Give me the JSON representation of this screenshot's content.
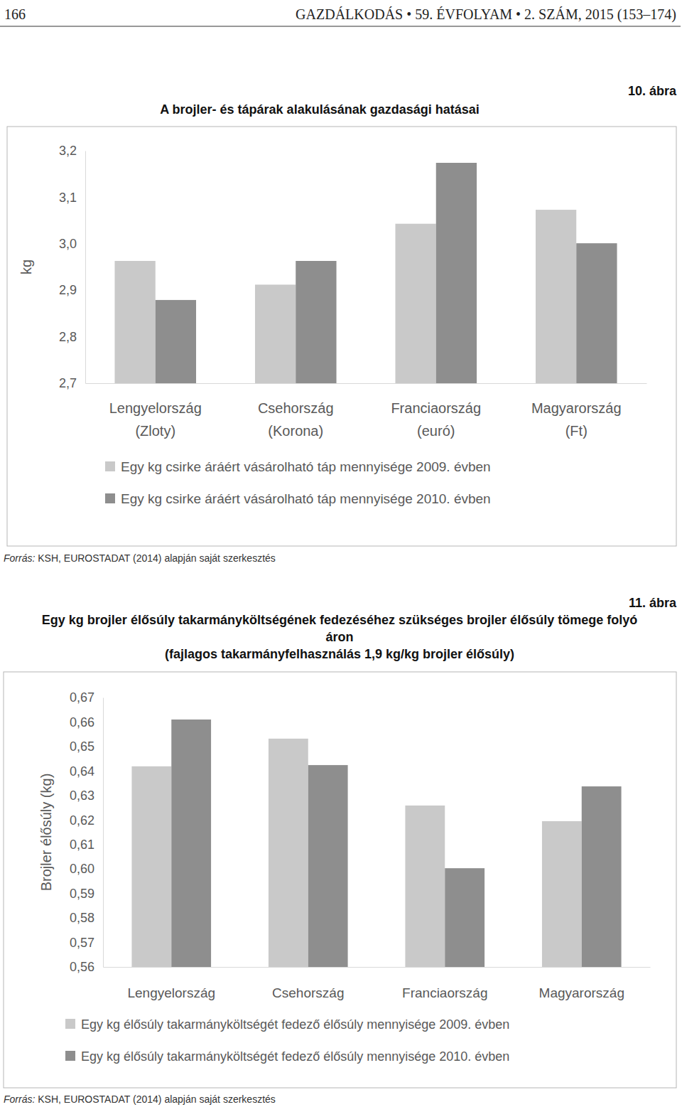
{
  "page": {
    "number": "166",
    "journal": "GAZDÁLKODÁS • 59. ÉVFOLYAM • 2. SZÁM, 2015 (153–174)"
  },
  "chart_data": [
    {
      "type": "bar",
      "figure_number": "10. ábra",
      "title": "A brojler- és tápárak alakulásának gazdasági hatásai",
      "ylabel": "kg",
      "categories": [
        "Lengyelország (Zloty)",
        "Csehország (Korona)",
        "Franciaország (euró)",
        "Magyarország (Ft)"
      ],
      "series": [
        {
          "name": "Egy kg csirke áráért vásárolható táp mennyisége 2009. évben",
          "color": "#c9c9c9",
          "values": [
            2.963,
            2.912,
            3.043,
            3.073
          ]
        },
        {
          "name": "Egy kg csirke áráért vásárolható táp mennyisége 2010. évben",
          "color": "#8e8e8e",
          "values": [
            2.879,
            2.963,
            3.174,
            3.001
          ]
        }
      ],
      "ylim": [
        2.7,
        3.2
      ],
      "yticks": [
        {
          "value": 2.7,
          "label": "2,7"
        },
        {
          "value": 2.8,
          "label": "2,8"
        },
        {
          "value": 2.9,
          "label": "2,9"
        },
        {
          "value": 3.0,
          "label": "3,0"
        },
        {
          "value": 3.1,
          "label": "3,1"
        },
        {
          "value": 3.2,
          "label": "3,2"
        }
      ],
      "grid": false,
      "legend": "bottom",
      "source": "Forrás: KSH, EUROSTADAT (2014) alapján saját szerkesztés"
    },
    {
      "type": "bar",
      "figure_number": "11. ábra",
      "title": "Egy kg brojler élősúly takarmányköltségének fedezéséhez szükséges brojler élősúly tömege folyó áron",
      "subtitle": "(fajlagos takarmányfelhasználás 1,9 kg/kg brojler élősúly)",
      "ylabel": "Brojler élősúly (kg)",
      "categories": [
        "Lengyelország",
        "Csehország",
        "Franciaország",
        "Magyarország"
      ],
      "series": [
        {
          "name": "Egy kg élősúly takarmányköltségét fedező élősúly mennyisége 2009. évben",
          "color": "#c9c9c9",
          "values": [
            0.6419,
            0.6532,
            0.6259,
            0.6195
          ]
        },
        {
          "name": "Egy kg élősúly takarmányköltségét fedező élősúly mennyisége 2010. évben",
          "color": "#8e8e8e",
          "values": [
            0.661,
            0.6424,
            0.6003,
            0.6337
          ]
        }
      ],
      "ylim": [
        0.56,
        0.67
      ],
      "yticks": [
        {
          "value": 0.56,
          "label": "0,56"
        },
        {
          "value": 0.57,
          "label": "0,57"
        },
        {
          "value": 0.58,
          "label": "0,58"
        },
        {
          "value": 0.59,
          "label": "0,59"
        },
        {
          "value": 0.6,
          "label": "0,60"
        },
        {
          "value": 0.61,
          "label": "0,61"
        },
        {
          "value": 0.62,
          "label": "0,62"
        },
        {
          "value": 0.63,
          "label": "0,63"
        },
        {
          "value": 0.64,
          "label": "0,64"
        },
        {
          "value": 0.65,
          "label": "0,65"
        },
        {
          "value": 0.66,
          "label": "0,66"
        },
        {
          "value": 0.67,
          "label": "0,67"
        }
      ],
      "grid": false,
      "legend": "bottom",
      "source": "Forrás: KSH, EUROSTADAT (2014) alapján saját szerkesztés"
    }
  ]
}
